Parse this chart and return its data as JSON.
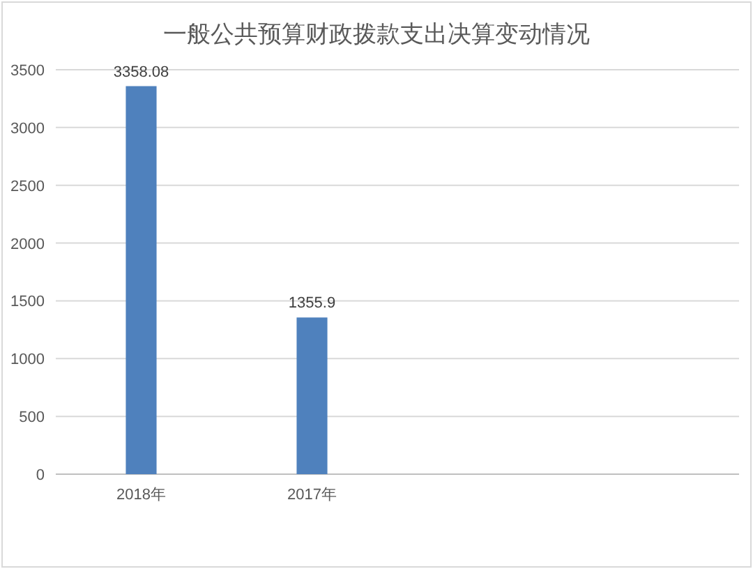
{
  "chart_data": {
    "type": "bar",
    "title": "一般公共预算财政拨款支出决算变动情况",
    "categories": [
      "2018年",
      "2017年",
      null,
      null
    ],
    "series": [
      {
        "color": "#4f81bd",
        "values": [
          3358.08,
          1355.9,
          null,
          null
        ]
      }
    ],
    "ylim": [
      0,
      3500
    ],
    "yticks": [
      0,
      500,
      1000,
      1500,
      2000,
      2500,
      3000,
      3500
    ],
    "grid": "y",
    "data_labels": true
  }
}
